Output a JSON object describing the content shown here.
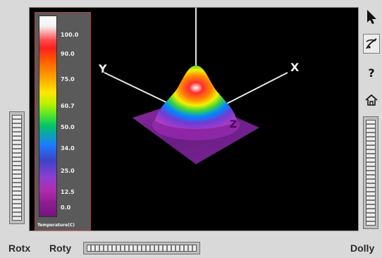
{
  "legend": {
    "labels": [
      "100.0",
      "90.0",
      "75.0",
      "60.7",
      "50.0",
      "34.0",
      "25.0",
      "12.5",
      "0.0"
    ],
    "caption": "Temperature(C)"
  },
  "viewport": {
    "axis_y_label": "Y",
    "axis_x_label": "X",
    "object_label": "Z"
  },
  "toolbar": {
    "tools": [
      {
        "icon": "arrow-pointer-icon"
      },
      {
        "icon": "rotate-view-icon"
      },
      {
        "icon": "help-icon",
        "label": "?"
      },
      {
        "icon": "home-icon"
      }
    ]
  },
  "thumbwheels": {
    "rotx_label": "Rotx",
    "roty_label": "Roty",
    "dolly_label": "Dolly"
  }
}
